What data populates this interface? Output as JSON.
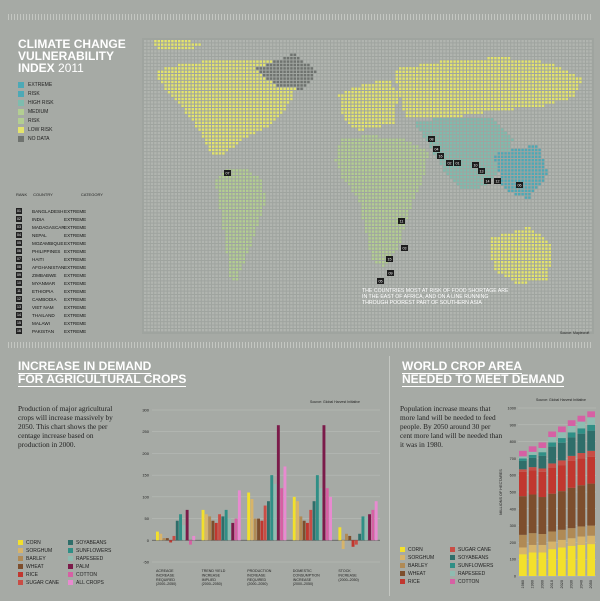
{
  "colors": {
    "extreme": "#4da9b6",
    "high_risk": "#7ebcae",
    "medium": "#b3ce91",
    "low_risk": "#e4e46c",
    "no_data": "#6f736f",
    "crops": {
      "corn": "#f3e02b",
      "sorghum": "#d7b46a",
      "barley": "#b08a55",
      "wheat": "#7d4e2d",
      "rice": "#c1372f",
      "sugar_cane": "#c94d45",
      "soyabeans": "#2f6e6a",
      "sunflowers": "#2f8f86",
      "rapeseed": "#8fbcb1",
      "palm": "#7b1b4a",
      "cotton": "#d660a4",
      "all_crops": "#e88ad0"
    }
  },
  "map": {
    "title_line1": "CLIMATE CHANGE",
    "title_line2": "VULNERABILITY",
    "title_line3": "INDEX",
    "title_year": "2011",
    "legend": [
      {
        "label": "EXTREME",
        "color": "#4da9b6"
      },
      {
        "label": "RISK",
        "color": "#4da9b6"
      },
      {
        "label": "HIGH RISK",
        "color": "#7ebcae"
      },
      {
        "label": "MEDIUM",
        "color": "#b3ce91"
      },
      {
        "label": "RISK",
        "color": "#b3ce91"
      },
      {
        "label": "LOW RISK",
        "color": "#e4e46c"
      },
      {
        "label": "NO DATA",
        "color": "#6f736f"
      }
    ],
    "rank_header": [
      "RANK",
      "COUNTRY",
      "CATEGORY"
    ],
    "ranking": [
      {
        "rank": "01",
        "country": "BANGLADESH",
        "category": "EXTREME"
      },
      {
        "rank": "02",
        "country": "INDIA",
        "category": "EXTREME"
      },
      {
        "rank": "03",
        "country": "MADAGASCAR",
        "category": "EXTREME"
      },
      {
        "rank": "04",
        "country": "NEPAL",
        "category": "EXTREME"
      },
      {
        "rank": "05",
        "country": "MOZAMBIQUE",
        "category": "EXTREME"
      },
      {
        "rank": "06",
        "country": "PHILIPPINES",
        "category": "EXTREME"
      },
      {
        "rank": "07",
        "country": "HAITI",
        "category": "EXTREME"
      },
      {
        "rank": "08",
        "country": "AFGHANISTAN",
        "category": "EXTREME"
      },
      {
        "rank": "09",
        "country": "ZIMBABWE",
        "category": "EXTREME"
      },
      {
        "rank": "10",
        "country": "MYANMAR",
        "category": "EXTREME"
      },
      {
        "rank": "11",
        "country": "ETHIOPIA",
        "category": "EXTREME"
      },
      {
        "rank": "12",
        "country": "CAMBODIA",
        "category": "EXTREME"
      },
      {
        "rank": "13",
        "country": "VIET NAM",
        "category": "EXTREME"
      },
      {
        "rank": "14",
        "country": "THAILAND",
        "category": "EXTREME"
      },
      {
        "rank": "15",
        "country": "MALAWI",
        "category": "EXTREME"
      },
      {
        "rank": "16",
        "country": "PAKISTAN",
        "category": "EXTREME"
      }
    ],
    "markers": [
      "07",
      "08",
      "04",
      "16",
      "02",
      "01",
      "10",
      "13",
      "14",
      "12",
      "06",
      "11",
      "15",
      "09",
      "05",
      "03"
    ],
    "note": "THE COUNTRIES MOST AT RISK OF FOOD SHORTAGE ARE IN THE EAST OF AFRICA, AND ON A LINE RUNNING THROUGH POOREST PART OF SOUTHERN ASIA",
    "source": "Source: Maplecroft"
  },
  "demand": {
    "title_line1": "INCREASE IN DEMAND",
    "title_line2": "FOR AGRICULTURAL CROPS",
    "text": "Production of major agricultural crops will increase massively by 2050. This chart shows the per centage increase based on production in 2000.",
    "source": "Source: Global Harvest Initiative",
    "legend": [
      {
        "label": "CORN",
        "key": "corn"
      },
      {
        "label": "SOYABEANS",
        "key": "soyabeans"
      },
      {
        "label": "SORGHUM",
        "key": "sorghum"
      },
      {
        "label": "SUNFLOWERS",
        "key": "sunflowers"
      },
      {
        "label": "BARLEY",
        "key": "barley"
      },
      {
        "label": "RAPESEED",
        "key": "rapeseed"
      },
      {
        "label": "WHEAT",
        "key": "wheat"
      },
      {
        "label": "PALM",
        "key": "palm"
      },
      {
        "label": "RICE",
        "key": "rice"
      },
      {
        "label": "COTTON",
        "key": "cotton"
      },
      {
        "label": "SUGAR CANE",
        "key": "sugar_cane"
      },
      {
        "label": "ALL CROPS",
        "key": "all_crops"
      }
    ]
  },
  "area": {
    "title_line1": "WORLD CROP AREA",
    "title_line2": "NEEDED TO MEET DEMAND",
    "text": "Population increase means that more land will be needed to feed people. By 2050 around 30 per cent more land will be needed than it was in 1980.",
    "source": "Source: Global Harvest Initiative",
    "legend": [
      {
        "label": "CORN",
        "key": "corn"
      },
      {
        "label": "SUGAR CANE",
        "key": "sugar_cane"
      },
      {
        "label": "SORGHUM",
        "key": "sorghum"
      },
      {
        "label": "SOYABEANS",
        "key": "soyabeans"
      },
      {
        "label": "BARLEY",
        "key": "barley"
      },
      {
        "label": "SUNFLOWERS",
        "key": "sunflowers"
      },
      {
        "label": "WHEAT",
        "key": "wheat"
      },
      {
        "label": "RAPESEED",
        "key": "rapeseed"
      },
      {
        "label": "RICE",
        "key": "rice"
      },
      {
        "label": "COTTON",
        "key": "cotton"
      }
    ]
  },
  "chart_data": [
    {
      "type": "bar",
      "categories": [
        "ACREAGE INCREASE REQUIRED (2000–2050)",
        "TREND YIELD INCREASE IMPLIED (2000–2050)",
        "PRODUCTION INCREASE REQUIRED (2000–2050)",
        "DOMESTIC CONSUMPTION INCREASE (2000–2050)",
        "STOCK INCREASE (2000–2050)"
      ],
      "ylim": [
        -50,
        300
      ],
      "yticks": [
        -50,
        0,
        50,
        100,
        150,
        200,
        250,
        300
      ],
      "series": [
        {
          "name": "CORN",
          "key": "corn",
          "values": [
            20,
            70,
            110,
            100,
            30
          ]
        },
        {
          "name": "SORGHUM",
          "key": "sorghum",
          "values": [
            15,
            60,
            95,
            90,
            -20
          ]
        },
        {
          "name": "BARLEY",
          "key": "barley",
          "values": [
            5,
            55,
            50,
            55,
            15
          ]
        },
        {
          "name": "WHEAT",
          "key": "wheat",
          "values": [
            5,
            45,
            50,
            45,
            10
          ]
        },
        {
          "name": "RICE",
          "key": "rice",
          "values": [
            -5,
            40,
            45,
            40,
            -15
          ]
        },
        {
          "name": "SUGAR CANE",
          "key": "sugar_cane",
          "values": [
            10,
            60,
            80,
            70,
            -10
          ]
        },
        {
          "name": "SOYABEANS",
          "key": "soyabeans",
          "values": [
            45,
            55,
            90,
            90,
            15
          ]
        },
        {
          "name": "SUNFLOWERS",
          "key": "sunflowers",
          "values": [
            60,
            70,
            150,
            150,
            55
          ]
        },
        {
          "name": "RAPESEED",
          "key": "rapeseed",
          "values": [
            35,
            50,
            130,
            120,
            55
          ]
        },
        {
          "name": "PALM",
          "key": "palm",
          "values": [
            70,
            40,
            265,
            265,
            60
          ]
        },
        {
          "name": "COTTON",
          "key": "cotton",
          "values": [
            -10,
            50,
            120,
            120,
            70
          ]
        },
        {
          "name": "ALL CROPS",
          "key": "all_crops",
          "values": [
            10,
            115,
            170,
            100,
            90
          ]
        }
      ]
    },
    {
      "type": "bar",
      "stacked": true,
      "categories": [
        "1980",
        "1990",
        "2000",
        "2010",
        "2020",
        "2030",
        "2040",
        "2050"
      ],
      "ylabel": "MILLIONS OF HECTARES",
      "ylim": [
        0,
        1000
      ],
      "yticks": [
        0,
        100,
        200,
        300,
        400,
        500,
        600,
        700,
        800,
        900,
        1000
      ],
      "series": [
        {
          "name": "CORN",
          "key": "corn",
          "values": [
            130,
            140,
            140,
            160,
            170,
            180,
            185,
            190
          ]
        },
        {
          "name": "SORGHUM",
          "key": "sorghum",
          "values": [
            40,
            45,
            45,
            45,
            45,
            45,
            50,
            50
          ]
        },
        {
          "name": "BARLEY",
          "key": "barley",
          "values": [
            75,
            70,
            65,
            60,
            60,
            60,
            60,
            60
          ]
        },
        {
          "name": "WHEAT",
          "key": "wheat",
          "values": [
            230,
            230,
            220,
            225,
            230,
            240,
            245,
            250
          ]
        },
        {
          "name": "RICE",
          "key": "rice",
          "values": [
            145,
            145,
            150,
            155,
            155,
            160,
            160,
            160
          ]
        },
        {
          "name": "SUGAR CANE",
          "key": "sugar_cane",
          "values": [
            15,
            18,
            20,
            25,
            28,
            30,
            32,
            35
          ]
        },
        {
          "name": "SOYABEANS",
          "key": "soyabeans",
          "values": [
            50,
            55,
            75,
            100,
            105,
            110,
            115,
            120
          ]
        },
        {
          "name": "SUNFLOWERS",
          "key": "sunflowers",
          "values": [
            15,
            18,
            22,
            25,
            28,
            30,
            32,
            35
          ]
        },
        {
          "name": "RAPESEED",
          "key": "rapeseed",
          "values": [
            12,
            18,
            25,
            32,
            35,
            38,
            40,
            45
          ]
        },
        {
          "name": "COTTON",
          "key": "cotton",
          "values": [
            33,
            33,
            33,
            33,
            34,
            34,
            35,
            35
          ]
        }
      ]
    }
  ]
}
